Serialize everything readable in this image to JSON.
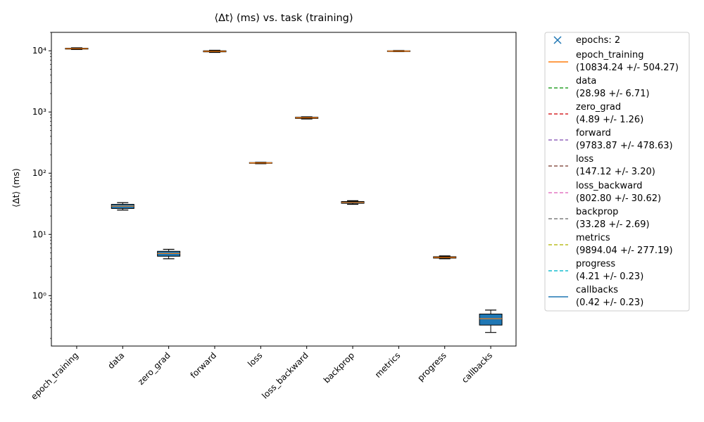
{
  "chart_data": {
    "type": "box",
    "title": "⟨Δt⟩ (ms) vs. task (training)",
    "xlabel": "",
    "ylabel": "⟨Δt⟩ (ms)",
    "yscale": "log",
    "ylim": [
      0.15,
      20000
    ],
    "yticks": [
      {
        "value": 1,
        "label": "10⁰"
      },
      {
        "value": 10,
        "label": "10¹"
      },
      {
        "value": 100,
        "label": "10²"
      },
      {
        "value": 1000,
        "label": "10³"
      },
      {
        "value": 10000,
        "label": "10⁴"
      }
    ],
    "grid": false,
    "legend_position": "outside-right",
    "categories": [
      "epoch_training",
      "data",
      "zero_grad",
      "forward",
      "loss",
      "loss_backward",
      "backprop",
      "metrics",
      "progress",
      "callbacks"
    ],
    "boxes": [
      {
        "min": 10500,
        "q1": 10650,
        "median": 10834,
        "q3": 11000,
        "max": 11200,
        "fill": "#1f77b4"
      },
      {
        "min": 25,
        "q1": 26.5,
        "median": 28.98,
        "q3": 31,
        "max": 33,
        "fill": "#1f77b4"
      },
      {
        "min": 4.0,
        "q1": 4.4,
        "median": 4.89,
        "q3": 5.3,
        "max": 5.7,
        "fill": "#1f77b4"
      },
      {
        "min": 9400,
        "q1": 9600,
        "median": 9783,
        "q3": 10000,
        "max": 10200,
        "fill": "#1f77b4"
      },
      {
        "min": 143,
        "q1": 145,
        "median": 147.12,
        "q3": 149,
        "max": 151,
        "fill": "#1f77b4"
      },
      {
        "min": 770,
        "q1": 785,
        "median": 802.8,
        "q3": 820,
        "max": 835,
        "fill": "#1f77b4"
      },
      {
        "min": 31,
        "q1": 32.2,
        "median": 33.28,
        "q3": 34.5,
        "max": 35.5,
        "fill": "#1f77b4"
      },
      {
        "min": 9700,
        "q1": 9800,
        "median": 9894,
        "q3": 9990,
        "max": 10100,
        "fill": "#1f77b4"
      },
      {
        "min": 4.0,
        "q1": 4.1,
        "median": 4.21,
        "q3": 4.32,
        "max": 4.45,
        "fill": "#1f77b4"
      },
      {
        "min": 0.25,
        "q1": 0.33,
        "median": 0.42,
        "q3": 0.5,
        "max": 0.58,
        "fill": "#1f77b4"
      }
    ],
    "legend": [
      {
        "marker": "x",
        "color": "#1f77b4",
        "line1": "epochs: 2",
        "line2": ""
      },
      {
        "marker": "solid",
        "color": "#ff7f0e",
        "line1": "epoch_training",
        "line2": "(10834.24 +/- 504.27)"
      },
      {
        "marker": "dashed",
        "color": "#2ca02c",
        "line1": "data",
        "line2": "(28.98 +/- 6.71)"
      },
      {
        "marker": "dashed",
        "color": "#d62728",
        "line1": "zero_grad",
        "line2": "(4.89 +/- 1.26)"
      },
      {
        "marker": "dashed",
        "color": "#9467bd",
        "line1": "forward",
        "line2": "(9783.87 +/- 478.63)"
      },
      {
        "marker": "dashed",
        "color": "#8c564b",
        "line1": "loss",
        "line2": "(147.12 +/- 3.20)"
      },
      {
        "marker": "dashed",
        "color": "#e377c2",
        "line1": "loss_backward",
        "line2": "(802.80 +/- 30.62)"
      },
      {
        "marker": "dashed",
        "color": "#7f7f7f",
        "line1": "backprop",
        "line2": "(33.28 +/- 2.69)"
      },
      {
        "marker": "dashed",
        "color": "#bcbd22",
        "line1": "metrics",
        "line2": "(9894.04 +/- 277.19)"
      },
      {
        "marker": "dashed",
        "color": "#17becf",
        "line1": "progress",
        "line2": "(4.21 +/- 0.23)"
      },
      {
        "marker": "solid",
        "color": "#1f77b4",
        "line1": "callbacks",
        "line2": "(0.42 +/- 0.23)"
      }
    ],
    "colors": {
      "box_fill": "#1f77b4",
      "median_line": "#ff7f0e",
      "axis": "#000000"
    }
  }
}
